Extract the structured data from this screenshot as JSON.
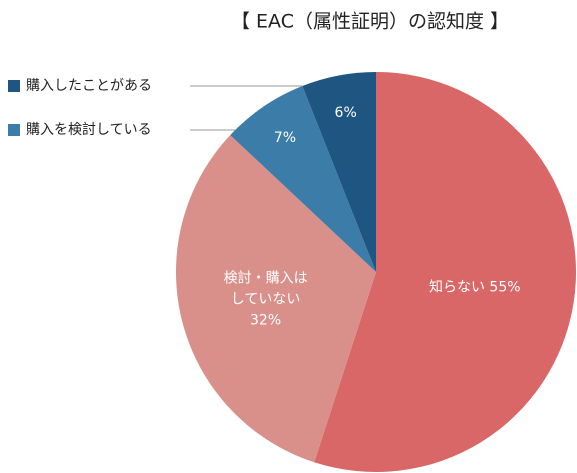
{
  "chart_data": {
    "type": "pie",
    "title": "【 EAC（属性証明）の認知度 】",
    "categories": [
      "知らない",
      "検討・購入はしていない",
      "購入を検討している",
      "購入したことがある"
    ],
    "values": [
      55,
      32,
      7,
      6
    ],
    "value_labels": [
      "55%",
      "32%",
      "7%",
      "6%"
    ],
    "colors": [
      "#d96767",
      "#d9908b",
      "#3c7ca8",
      "#1f5581"
    ]
  }
}
